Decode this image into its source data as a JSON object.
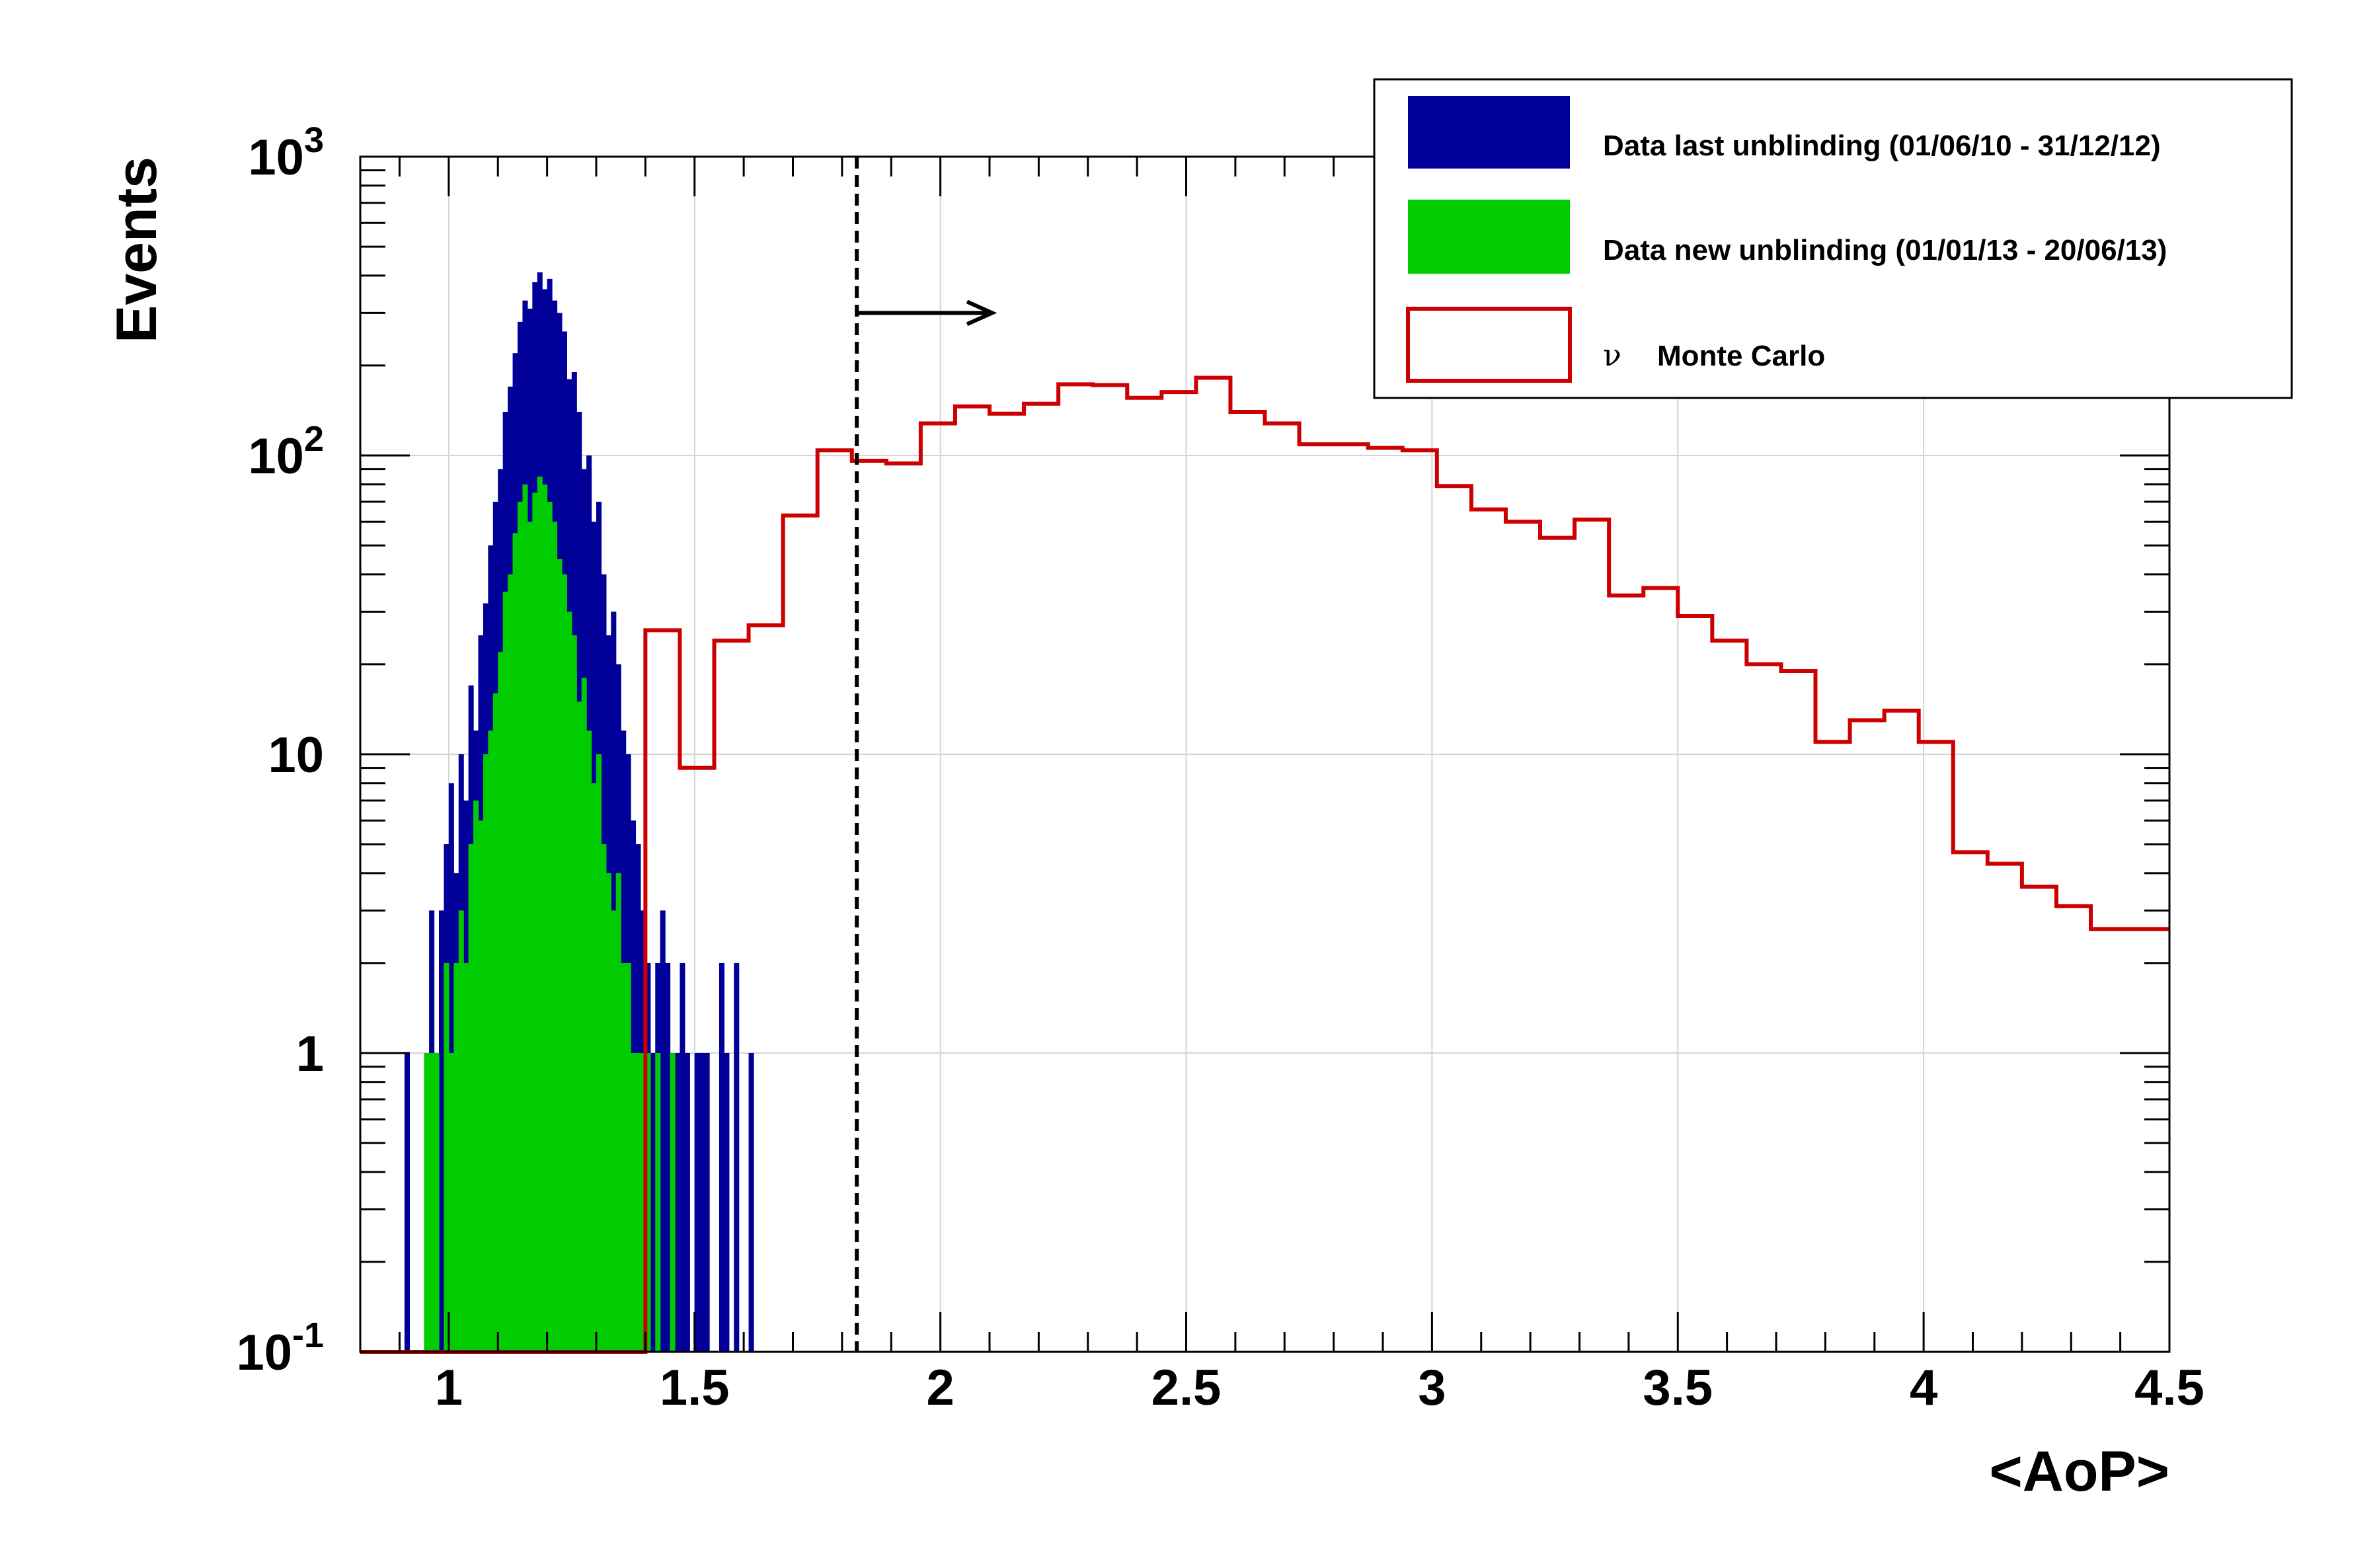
{
  "chart_data": {
    "type": "histogram",
    "xlabel": "<AoP>",
    "ylabel": "Events",
    "xlim": [
      0.82,
      4.5
    ],
    "ylim": [
      0.1,
      1000
    ],
    "y_scale": "log",
    "grid": true,
    "x_ticks": [
      "1",
      "1.5",
      "2",
      "2.5",
      "3",
      "3.5",
      "4",
      "4.5"
    ],
    "x_tick_values": [
      1,
      1.5,
      2,
      2.5,
      3,
      3.5,
      4,
      4.5
    ],
    "y_ticks": [
      {
        "value": 0.1,
        "base": "10",
        "exp": "-1"
      },
      {
        "value": 1,
        "base": "1",
        "exp": ""
      },
      {
        "value": 10,
        "base": "10",
        "exp": ""
      },
      {
        "value": 100,
        "base": "10",
        "exp": "2"
      },
      {
        "value": 1000,
        "base": "10",
        "exp": "3"
      }
    ],
    "cut": {
      "x": 1.83,
      "style": "dashed",
      "arrow_to_x": 2.1,
      "arrow_y": 300
    },
    "legend": {
      "placement": "top-right",
      "entries": [
        {
          "label": "Data last unblinding (01/06/10 - 31/12/12)",
          "style": "fill",
          "color": "#000099"
        },
        {
          "label": "Data new unblinding (01/01/13 - 20/06/13)",
          "style": "fill",
          "color": "#00cc00"
        },
        {
          "label": "Monte Carlo",
          "prefix": "ν",
          "style": "line",
          "color": "#cc0000"
        }
      ]
    },
    "series": [
      {
        "name": "Data last unblinding (01/06/10 - 31/12/12)",
        "style": "fill",
        "color": "#000099",
        "bin_width": 0.01,
        "bins": [
          [
            0.91,
            1
          ],
          [
            0.95,
            1
          ],
          [
            0.96,
            3
          ],
          [
            0.97,
            1
          ],
          [
            0.98,
            3
          ],
          [
            0.99,
            5
          ],
          [
            1.0,
            8
          ],
          [
            1.01,
            4
          ],
          [
            1.02,
            10
          ],
          [
            1.03,
            7
          ],
          [
            1.04,
            17
          ],
          [
            1.05,
            12
          ],
          [
            1.06,
            25
          ],
          [
            1.07,
            32
          ],
          [
            1.08,
            50
          ],
          [
            1.09,
            70
          ],
          [
            1.1,
            90
          ],
          [
            1.11,
            140
          ],
          [
            1.12,
            170
          ],
          [
            1.13,
            220
          ],
          [
            1.14,
            280
          ],
          [
            1.15,
            330
          ],
          [
            1.16,
            310
          ],
          [
            1.17,
            380
          ],
          [
            1.18,
            410
          ],
          [
            1.19,
            360
          ],
          [
            1.2,
            390
          ],
          [
            1.21,
            330
          ],
          [
            1.22,
            300
          ],
          [
            1.23,
            260
          ],
          [
            1.24,
            180
          ],
          [
            1.25,
            190
          ],
          [
            1.26,
            140
          ],
          [
            1.27,
            90
          ],
          [
            1.28,
            100
          ],
          [
            1.29,
            60
          ],
          [
            1.3,
            70
          ],
          [
            1.31,
            40
          ],
          [
            1.32,
            25
          ],
          [
            1.33,
            30
          ],
          [
            1.34,
            20
          ],
          [
            1.35,
            12
          ],
          [
            1.36,
            10
          ],
          [
            1.37,
            6
          ],
          [
            1.38,
            5
          ],
          [
            1.39,
            3
          ],
          [
            1.4,
            2
          ],
          [
            1.41,
            1
          ],
          [
            1.42,
            2
          ],
          [
            1.43,
            3
          ],
          [
            1.44,
            2
          ],
          [
            1.45,
            1
          ],
          [
            1.46,
            1
          ],
          [
            1.47,
            2
          ],
          [
            1.48,
            1
          ],
          [
            1.5,
            1
          ],
          [
            1.51,
            1
          ],
          [
            1.52,
            1
          ],
          [
            1.55,
            2
          ],
          [
            1.56,
            1
          ],
          [
            1.58,
            2
          ],
          [
            1.61,
            1
          ]
        ]
      },
      {
        "name": "Data new unblinding (01/01/13 - 20/06/13)",
        "style": "fill",
        "color": "#00cc00",
        "bin_width": 0.01,
        "bins": [
          [
            0.95,
            1
          ],
          [
            0.96,
            1
          ],
          [
            0.97,
            1
          ],
          [
            0.99,
            2
          ],
          [
            1.0,
            1
          ],
          [
            1.01,
            2
          ],
          [
            1.02,
            3
          ],
          [
            1.03,
            2
          ],
          [
            1.04,
            5
          ],
          [
            1.05,
            7
          ],
          [
            1.06,
            6
          ],
          [
            1.07,
            10
          ],
          [
            1.08,
            12
          ],
          [
            1.09,
            16
          ],
          [
            1.1,
            22
          ],
          [
            1.11,
            35
          ],
          [
            1.12,
            40
          ],
          [
            1.13,
            55
          ],
          [
            1.14,
            70
          ],
          [
            1.15,
            80
          ],
          [
            1.16,
            60
          ],
          [
            1.17,
            75
          ],
          [
            1.18,
            85
          ],
          [
            1.19,
            80
          ],
          [
            1.2,
            70
          ],
          [
            1.21,
            60
          ],
          [
            1.22,
            45
          ],
          [
            1.23,
            40
          ],
          [
            1.24,
            30
          ],
          [
            1.25,
            25
          ],
          [
            1.26,
            15
          ],
          [
            1.27,
            18
          ],
          [
            1.28,
            12
          ],
          [
            1.29,
            8
          ],
          [
            1.3,
            10
          ],
          [
            1.31,
            5
          ],
          [
            1.32,
            4
          ],
          [
            1.33,
            3
          ],
          [
            1.34,
            4
          ],
          [
            1.35,
            2
          ],
          [
            1.36,
            2
          ],
          [
            1.37,
            1
          ],
          [
            1.38,
            1
          ],
          [
            1.39,
            1
          ],
          [
            1.4,
            1
          ],
          [
            1.42,
            1
          ],
          [
            1.45,
            1
          ]
        ]
      },
      {
        "name": "Monte Carlo",
        "style": "step",
        "color": "#cc0000",
        "bin_edges": [
          0.82,
          1.4,
          1.47,
          1.54,
          1.61,
          1.68,
          1.75,
          1.82,
          1.89,
          1.96,
          2.03,
          2.1,
          2.17,
          2.24,
          2.31,
          2.38,
          2.45,
          2.52,
          2.59,
          2.66,
          2.73,
          2.8,
          2.87,
          2.94,
          3.01,
          3.08,
          3.15,
          3.22,
          3.29,
          3.36,
          3.43,
          3.5,
          3.57,
          3.64,
          3.71,
          3.78,
          3.85,
          3.92,
          3.99,
          4.06,
          4.13,
          4.2,
          4.27,
          4.34,
          4.41,
          4.5
        ],
        "values": [
          0.1,
          26,
          9,
          24,
          27,
          63,
          104,
          96,
          94,
          128,
          146,
          138,
          149,
          173,
          172,
          156,
          163,
          182,
          140,
          128,
          109,
          109,
          106,
          104,
          79,
          66,
          60,
          53,
          61,
          34,
          36,
          29,
          24,
          20,
          19,
          11,
          13,
          14,
          11,
          4.7,
          4.3,
          3.6,
          3.1,
          2.6,
          2.6
        ]
      }
    ]
  }
}
